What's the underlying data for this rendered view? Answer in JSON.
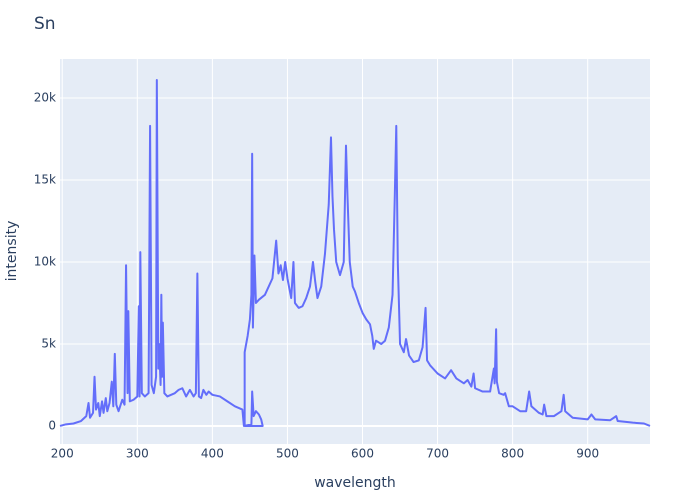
{
  "chart_data": {
    "type": "line",
    "title": "Sn",
    "x_label": "wavelength",
    "y_label": "intensity",
    "color": "#636efa",
    "grid": true,
    "xlim": [
      197,
      983
    ],
    "ylim": [
      -1100,
      22380
    ],
    "xticks": [
      200,
      300,
      400,
      500,
      600,
      700,
      800,
      900
    ],
    "yticks": [
      {
        "value": 0,
        "label": "0"
      },
      {
        "value": 5000,
        "label": "5k"
      },
      {
        "value": 10000,
        "label": "10k"
      },
      {
        "value": 15000,
        "label": "15k"
      },
      {
        "value": 20000,
        "label": "20k"
      }
    ],
    "x": [
      197,
      205,
      215,
      225,
      232,
      235,
      237,
      241,
      243,
      245,
      248,
      250,
      253,
      255,
      258,
      260,
      263,
      266,
      268,
      270,
      272,
      275,
      280,
      283,
      285,
      287,
      288,
      290,
      295,
      300,
      302,
      303,
      304,
      306,
      310,
      315,
      317,
      319,
      322,
      325,
      326,
      328,
      329,
      331,
      332,
      333,
      334,
      336,
      340,
      350,
      355,
      360,
      365,
      370,
      375,
      378,
      380,
      382,
      385,
      388,
      392,
      395,
      400,
      410,
      420,
      430,
      440,
      442,
      452,
      453,
      455,
      458,
      462,
      465,
      467,
      443,
      443,
      447,
      450,
      452,
      453,
      454,
      456,
      458,
      462,
      470,
      480,
      485,
      488,
      491,
      494,
      497,
      500,
      505,
      508,
      510,
      515,
      520,
      525,
      530,
      534,
      537,
      540,
      545,
      550,
      555,
      558,
      560,
      562,
      565,
      570,
      575,
      578,
      580,
      583,
      587,
      590,
      595,
      600,
      605,
      610,
      613,
      615,
      618,
      625,
      630,
      635,
      640,
      643,
      645,
      647,
      650,
      655,
      658,
      662,
      668,
      675,
      680,
      684,
      686,
      690,
      700,
      710,
      718,
      725,
      735,
      740,
      745,
      748,
      750,
      760,
      770,
      775,
      776,
      778,
      779,
      782,
      788,
      790,
      795,
      800,
      810,
      818,
      820,
      822,
      825,
      835,
      840,
      842,
      845,
      855,
      865,
      868,
      870,
      880,
      900,
      905,
      910,
      930,
      938,
      940,
      960,
      975,
      983
    ],
    "values": [
      0,
      100,
      150,
      300,
      600,
      1400,
      500,
      800,
      3000,
      1000,
      1400,
      600,
      1500,
      800,
      1700,
      900,
      1400,
      2700,
      1200,
      4400,
      1300,
      900,
      1600,
      1300,
      9800,
      2000,
      7000,
      1500,
      1600,
      1800,
      7300,
      1800,
      10600,
      2000,
      1800,
      2000,
      18300,
      2500,
      2000,
      3000,
      21100,
      3500,
      5000,
      2500,
      8000,
      3000,
      6300,
      2000,
      1800,
      2000,
      2200,
      2300,
      1800,
      2200,
      1800,
      2000,
      9300,
      1800,
      1700,
      2200,
      1900,
      2100,
      1900,
      1800,
      1500,
      1200,
      1000,
      0,
      100,
      2100,
      600,
      900,
      700,
      400,
      0,
      0,
      4500,
      5500,
      6500,
      8000,
      16600,
      6000,
      10400,
      7500,
      7700,
      8000,
      9000,
      11300,
      9300,
      9800,
      8900,
      10000,
      9000,
      7800,
      10000,
      7500,
      7200,
      7300,
      7800,
      8500,
      10000,
      8800,
      7800,
      8500,
      10500,
      13500,
      17600,
      14000,
      12000,
      10000,
      9200,
      10000,
      17100,
      14000,
      10000,
      8500,
      8200,
      7500,
      6900,
      6500,
      6200,
      5500,
      4700,
      5200,
      5000,
      5200,
      6000,
      8000,
      14000,
      18300,
      10000,
      5000,
      4500,
      5300,
      4300,
      3900,
      4000,
      4800,
      7200,
      4000,
      3700,
      3200,
      2900,
      3400,
      2900,
      2600,
      2800,
      2400,
      3200,
      2300,
      2100,
      2100,
      3500,
      2600,
      5900,
      2700,
      2000,
      1900,
      2000,
      1200,
      1200,
      900,
      900,
      1500,
      2100,
      1200,
      800,
      700,
      1300,
      600,
      600,
      900,
      1900,
      900,
      500,
      400,
      700,
      400,
      350,
      600,
      300,
      200,
      150,
      0
    ]
  }
}
